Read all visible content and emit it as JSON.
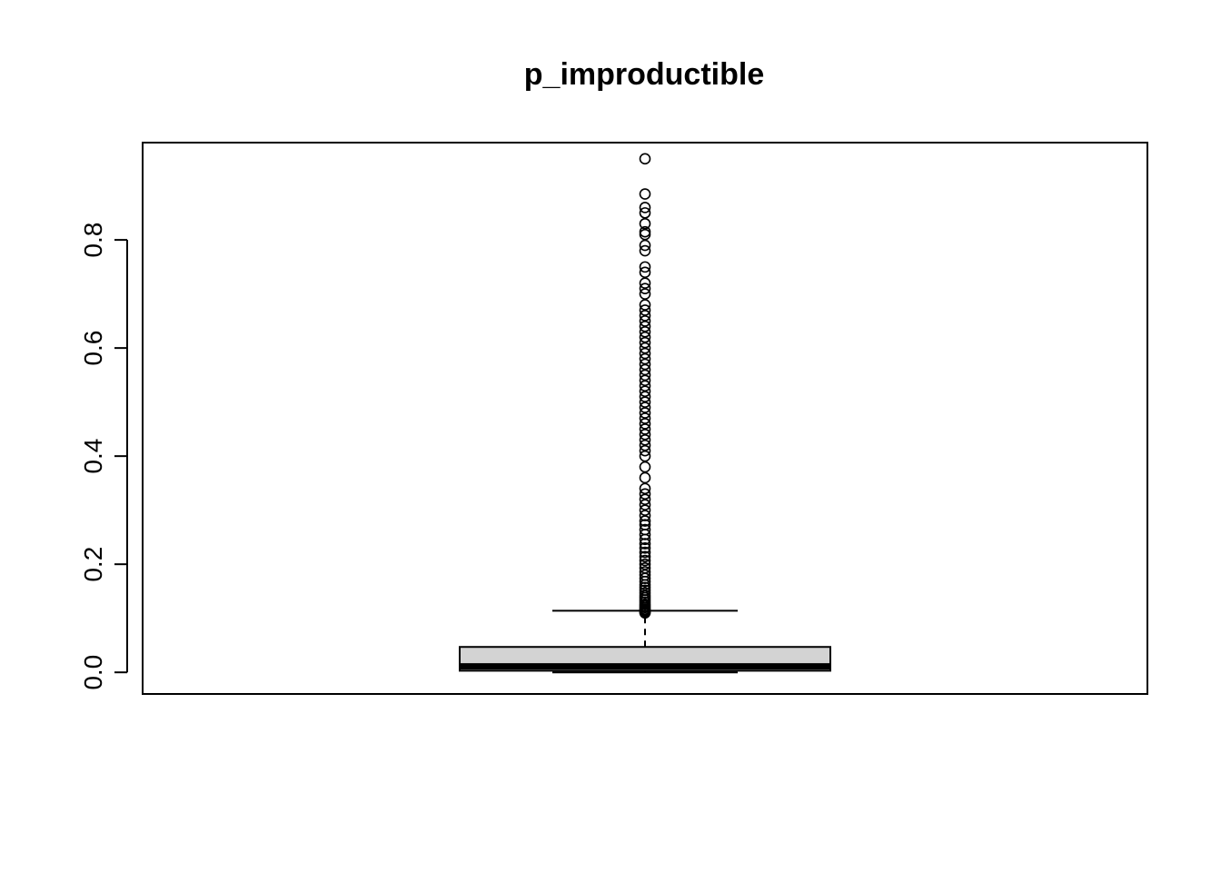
{
  "chart_data": {
    "type": "boxplot",
    "title": "p_improductible",
    "xlabel": "",
    "ylabel": "",
    "ylim": [
      -0.04,
      0.98
    ],
    "y_ticks": [
      0.0,
      0.2,
      0.4,
      0.6,
      0.8
    ],
    "y_tick_labels": [
      "0.0",
      "0.2",
      "0.4",
      "0.6",
      "0.8"
    ],
    "grid": false,
    "box": {
      "min": 0.0,
      "q1": 0.003,
      "median": 0.011,
      "q3": 0.047,
      "whisker_low": 0.0,
      "whisker_high": 0.114
    },
    "outliers": [
      0.11,
      0.111,
      0.113,
      0.115,
      0.117,
      0.12,
      0.123,
      0.126,
      0.13,
      0.134,
      0.138,
      0.142,
      0.147,
      0.152,
      0.157,
      0.162,
      0.168,
      0.174,
      0.18,
      0.186,
      0.193,
      0.2,
      0.207,
      0.214,
      0.222,
      0.23,
      0.238,
      0.246,
      0.255,
      0.264,
      0.273,
      0.28,
      0.29,
      0.3,
      0.31,
      0.32,
      0.33,
      0.34,
      0.36,
      0.38,
      0.4,
      0.41,
      0.42,
      0.43,
      0.44,
      0.45,
      0.46,
      0.47,
      0.48,
      0.49,
      0.5,
      0.51,
      0.52,
      0.53,
      0.54,
      0.55,
      0.56,
      0.57,
      0.58,
      0.59,
      0.6,
      0.61,
      0.62,
      0.63,
      0.64,
      0.65,
      0.66,
      0.67,
      0.68,
      0.7,
      0.71,
      0.72,
      0.74,
      0.75,
      0.78,
      0.79,
      0.81,
      0.815,
      0.83,
      0.85,
      0.86,
      0.885,
      0.95
    ],
    "colors": {
      "box_fill": "#d3d3d3",
      "stroke": "#000000",
      "background": "#ffffff"
    }
  }
}
